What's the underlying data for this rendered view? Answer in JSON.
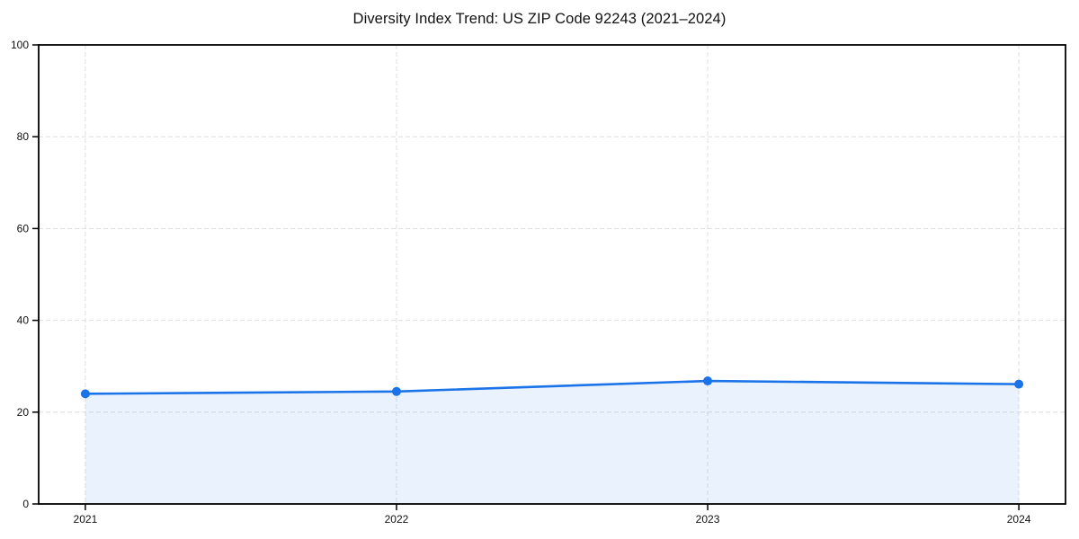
{
  "page": {
    "background": "#ffffff"
  },
  "chart_data": {
    "type": "area",
    "title": "Diversity Index Trend: US ZIP Code 92243 (2021–2024)",
    "xlabel": "",
    "ylabel": "",
    "x": [
      2021,
      2022,
      2023,
      2024
    ],
    "x_tick_labels": [
      "2021",
      "2022",
      "2023",
      "2024"
    ],
    "series": [
      {
        "name": "Diversity Index",
        "values": [
          24.0,
          24.5,
          26.8,
          26.1
        ]
      }
    ],
    "ylim": [
      0,
      100
    ],
    "yticks": [
      0,
      20,
      40,
      60,
      80,
      100
    ],
    "xlim": [
      2020.85,
      2024.15
    ],
    "grid": true,
    "grid_style": "dashed",
    "legend": "none",
    "colors": {
      "line": "#1a73e8",
      "marker": "#1a73e8",
      "fill": "#1a73e8",
      "fill_opacity": 0.09,
      "grid": "#dedede",
      "axis": "#000000",
      "text": "#111111"
    }
  }
}
